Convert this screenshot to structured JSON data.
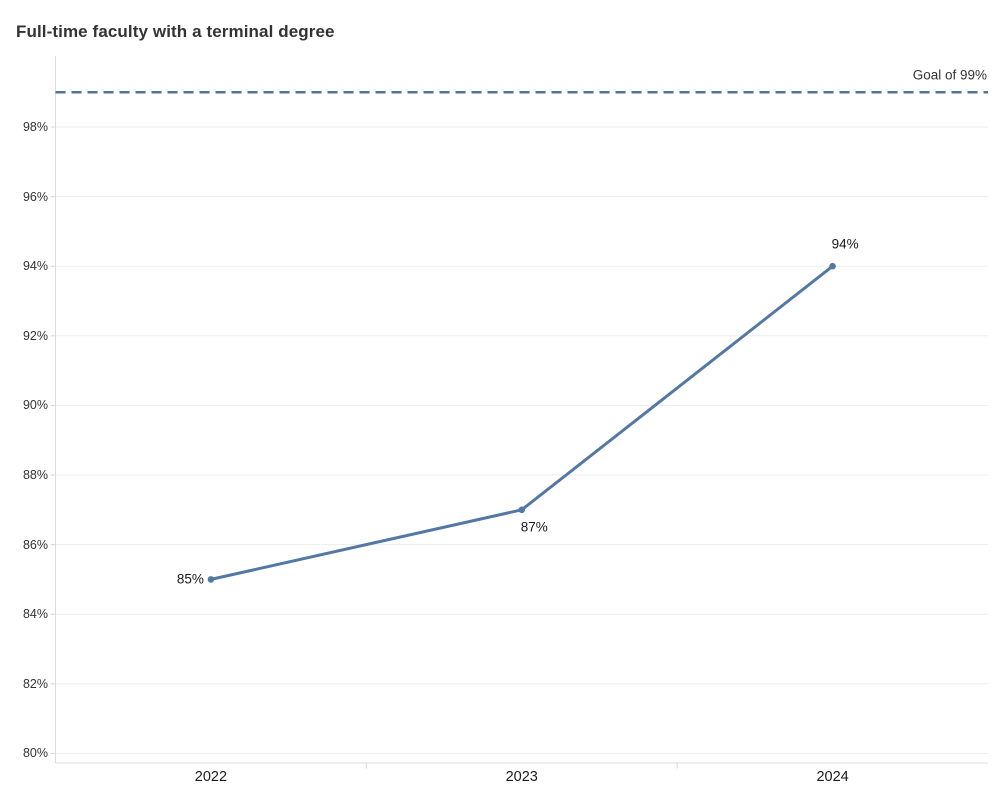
{
  "chart_data": {
    "type": "line",
    "title": "Full-time faculty with a terminal degree",
    "categories": [
      "2022",
      "2023",
      "2024"
    ],
    "series": [
      {
        "name": "Full-time faculty with a terminal degree",
        "values": [
          85,
          87,
          94
        ]
      }
    ],
    "point_labels": [
      "85%",
      "87%",
      "94%"
    ],
    "point_label_positions": [
      "left",
      "below",
      "above"
    ],
    "goal": {
      "value": 99,
      "label": "Goal of 99%"
    },
    "yaxis": {
      "ticks": [
        80,
        82,
        84,
        86,
        88,
        90,
        92,
        94,
        96,
        98
      ],
      "tick_labels": [
        "80%",
        "82%",
        "84%",
        "86%",
        "88%",
        "90%",
        "92%",
        "94%",
        "96%",
        "98%"
      ],
      "min": 79.7,
      "max": 100.1
    },
    "xlabel": "",
    "ylabel": "",
    "grid": true,
    "legend": "none",
    "colors": {
      "line": "#5478a4",
      "marker": "#5478a4",
      "goal_line": "#4f7399",
      "grid": "#ededed",
      "axis": "#dcdcdc",
      "tick": "#d7d7d7",
      "title_text": "#333333",
      "axis_text": "#333333",
      "label_text": "#1a1a1a"
    }
  }
}
